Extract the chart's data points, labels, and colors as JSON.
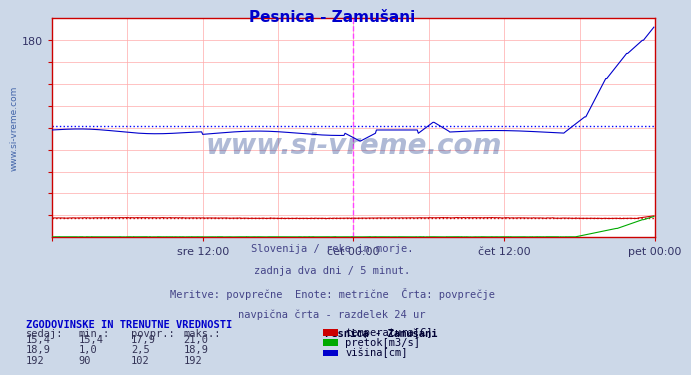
{
  "title": "Pesnica - Zamušani",
  "title_color": "#0000cc",
  "fig_bg_color": "#ccd8e8",
  "plot_bg_color": "#ffffff",
  "grid_color": "#ffaaaa",
  "xlim": [
    0,
    576
  ],
  "ylim": [
    0,
    200
  ],
  "ytick_vals": [
    20,
    40,
    60,
    80,
    100,
    120,
    140,
    160,
    180
  ],
  "ytick_shown": [
    180
  ],
  "xtick_positions": [
    0,
    144,
    288,
    432,
    576
  ],
  "xtick_labels": [
    "",
    "sre 12:00",
    "čet 00:00",
    "čet 12:00",
    "pet 00:00"
  ],
  "vline_position": 288,
  "vline_color": "#ff44ff",
  "hline_blue_y": 102,
  "hline_blue_color": "#0000ff",
  "hline_red_y": 17.9,
  "hline_red_color": "#cc0000",
  "temp_color": "#cc0000",
  "pretok_color": "#00aa00",
  "visina_color": "#0000cc",
  "watermark_text": "www.si-vreme.com",
  "watermark_color": "#1a3a8a",
  "watermark_alpha": 0.35,
  "subtitle_lines": [
    "Slovenija / reke in morje.",
    "zadnja dva dni / 5 minut.",
    "Meritve: povprečne  Enote: metrične  Črta: povprečje",
    "navpična črta - razdelek 24 ur"
  ],
  "table_header": "ZGODOVINSKE IN TRENUTNE VREDNOSTI",
  "header_labels": [
    "sedaj:",
    "min.:",
    "povpr.:",
    "maks.:"
  ],
  "table_rows": [
    [
      "15,4",
      "15,4",
      "17,9",
      "21,0"
    ],
    [
      "18,9",
      "1,0",
      "2,5",
      "18,9"
    ],
    [
      "192",
      "90",
      "102",
      "192"
    ]
  ],
  "legend_title": "Pesnica - Zamušani",
  "legend_items": [
    {
      "label": "temperatura[C]",
      "color": "#cc0000"
    },
    {
      "label": "pretok[m3/s]",
      "color": "#00aa00"
    },
    {
      "label": "višina[cm]",
      "color": "#0000cc"
    }
  ],
  "ylabel_text": "www.si-vreme.com",
  "ylabel_color": "#4466aa",
  "spine_color": "#cc0000",
  "tick_color": "#cc0000",
  "tick_label_color": "#333366"
}
